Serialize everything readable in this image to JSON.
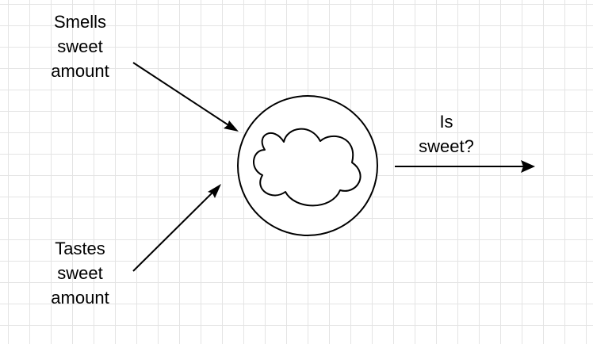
{
  "diagram": {
    "inputs": [
      {
        "lines": [
          "Smells",
          "sweet",
          "amount"
        ]
      },
      {
        "lines": [
          "Tastes",
          "sweet",
          "amount"
        ]
      }
    ],
    "output": {
      "lines": [
        "Is",
        "sweet?"
      ]
    }
  },
  "colors": {
    "stroke": "#000000",
    "background": "#ffffff",
    "grid": "#e4e4e4"
  }
}
